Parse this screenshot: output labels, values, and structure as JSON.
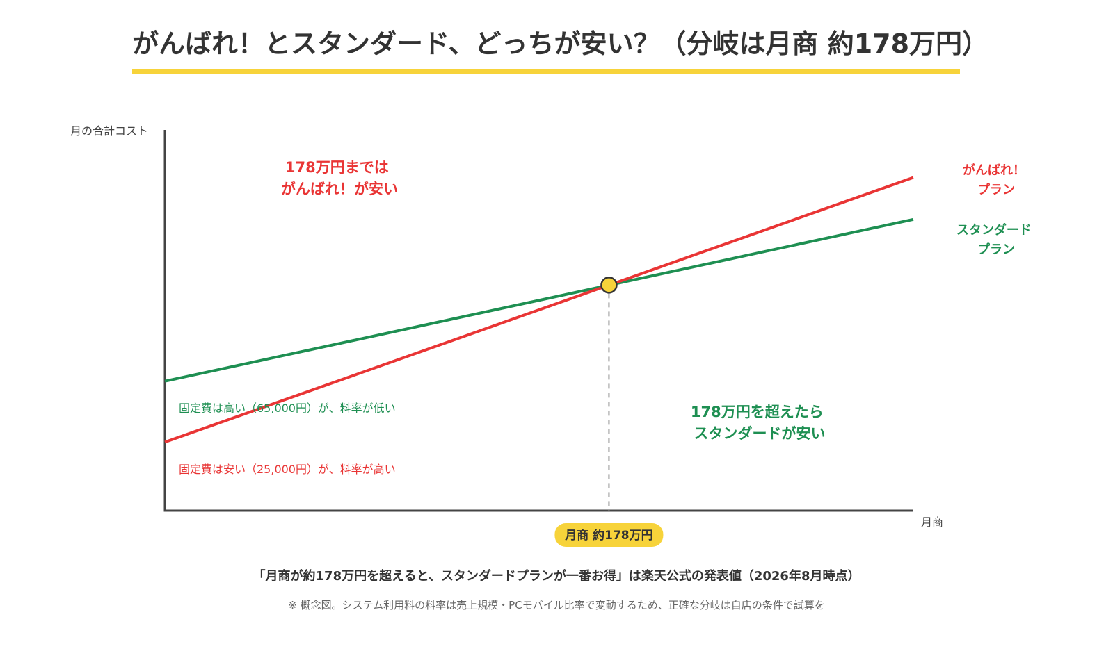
{
  "title": "がんばれ！とスタンダード、どっちが安い？（分岐は月商 約178万円）",
  "colors": {
    "accent": "#f7d33a",
    "ganbare": "#e93535",
    "standard": "#1e8f52",
    "axis": "#444444",
    "marker": "#f7d33a"
  },
  "chart_data": {
    "type": "line",
    "ylabel": "月の合計コスト",
    "xlabel": "月商",
    "xlim": [
      0,
      300
    ],
    "ylim": [
      0,
      100
    ],
    "series": [
      {
        "name": "がんばれ！\nプラン",
        "label_lines": [
          "がんばれ！",
          "プラン"
        ],
        "color": "#e93535",
        "x": [
          0,
          300
        ],
        "y": [
          18,
          87.5
        ]
      },
      {
        "name": "スタンダード\nプラン",
        "label_lines": [
          "スタンダード",
          "プラン"
        ],
        "color": "#1e8f52",
        "x": [
          0,
          300
        ],
        "y": [
          34,
          76.5
        ]
      }
    ],
    "breakeven": {
      "x": 178,
      "label": "月商 約178万円"
    },
    "annotations": {
      "left_top": [
        "178万円までは",
        "がんばれ！が安い"
      ],
      "right_bottom": [
        "178万円を超えたら",
        "スタンダードが安い"
      ],
      "standard_fixed": "固定費は高い（65,000円）が、料率が低い",
      "ganbare_fixed": "固定費は安い（25,000円）が、料率が高い"
    }
  },
  "footnote_main": "「月商が約178万円を超えると、スタンダードプランが一番お得」は楽天公式の発表値（2026年8月時点）",
  "footnote_note": "※ 概念図。システム利用料の料率は売上規模・PCモバイル比率で変動するため、正確な分岐は自店の条件で試算を"
}
